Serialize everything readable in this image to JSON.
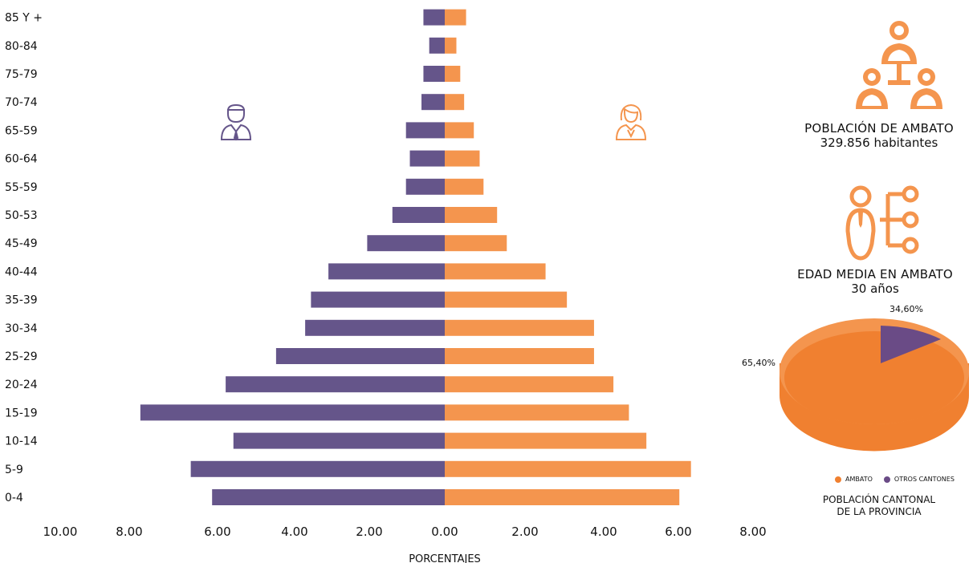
{
  "chart_data": [
    {
      "type": "bar",
      "orientation": "horizontal",
      "categories": [
        "0-4",
        "5-9",
        "10-14",
        "15-19",
        "20-24",
        "25-29",
        "30-34",
        "35-39",
        "40-44",
        "45-49",
        "50-53",
        "55-59",
        "60-64",
        "65-59",
        "70-74",
        "75-79",
        "80-84",
        "85 Y +"
      ],
      "series": [
        {
          "side": "left",
          "color": "#65558a",
          "values": [
            6.0,
            6.55,
            5.45,
            7.85,
            5.65,
            4.35,
            3.6,
            3.45,
            3.0,
            2.0,
            1.35,
            1.0,
            0.9,
            1.0,
            0.6,
            0.55,
            0.4,
            0.55
          ]
        },
        {
          "side": "right",
          "color": "#f4954e",
          "values": [
            6.05,
            6.35,
            5.2,
            4.75,
            4.35,
            3.85,
            3.85,
            3.15,
            2.6,
            1.6,
            1.35,
            1.0,
            0.9,
            0.75,
            0.5,
            0.4,
            0.3,
            0.55
          ]
        }
      ],
      "xlabel": "PORCENTAJES",
      "xticks": [
        "10.00",
        "8.00",
        "6.00",
        "4.00",
        "2.00",
        "0.00",
        "2.00",
        "4.00",
        "6.00",
        "8.00"
      ],
      "xlim": [
        -10,
        8
      ],
      "grid": false
    },
    {
      "type": "pie",
      "categories": [
        "AMBATO",
        "OTROS CANTONES"
      ],
      "values": [
        65.4,
        34.6
      ],
      "labels": [
        "65,40%",
        "34,60%"
      ],
      "colors": [
        "#f08030",
        "#6a4b86"
      ],
      "title": "POBLACIÓN CANTONAL DE LA PROVINCIA",
      "legend_position": "bottom"
    }
  ],
  "icons": {
    "male": "man-icon",
    "female": "woman-icon",
    "population": "people-group-icon",
    "age": "person-age-icon",
    "accent": "#f4954e",
    "male_color": "#65558a"
  },
  "info": {
    "population_title": "POBLACIÓN DE AMBATO",
    "population_value": "329.856 habitantes",
    "age_title": "EDAD MEDIA EN AMBATO",
    "age_value": "30 años"
  },
  "pie": {
    "label_ambato": "65,40%",
    "label_otros": "34,60%",
    "legend_ambato": "AMBATO",
    "legend_otros": "OTROS CANTONES",
    "caption_line1": "POBLACIÓN CANTONAL",
    "caption_line2": "DE LA PROVINCIA"
  }
}
